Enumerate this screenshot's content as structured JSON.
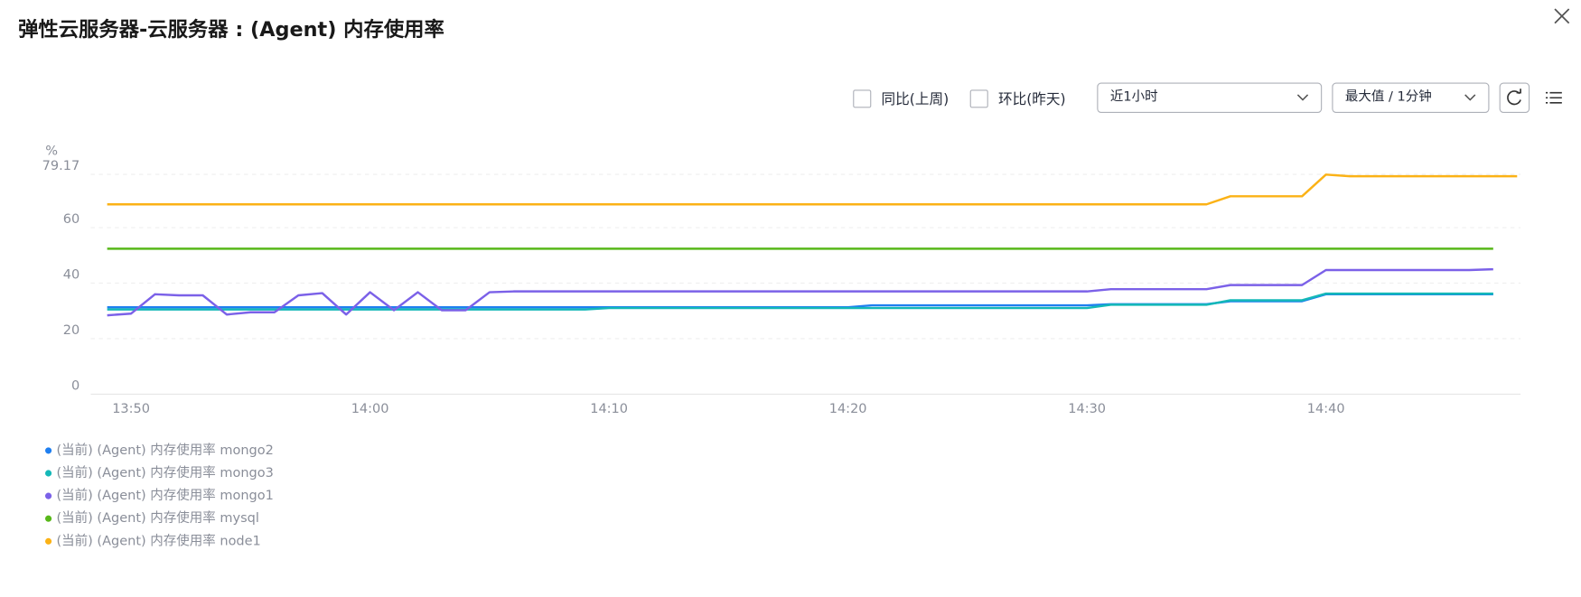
{
  "header": {
    "title": "弹性云服务器-云服务器 : (Agent) 内存使用率"
  },
  "controls": {
    "compare_week": "同比(上周)",
    "compare_day": "环比(昨天)",
    "range": "近1小时",
    "aggregation": "最大值 / 1分钟"
  },
  "chart_data": {
    "type": "line",
    "ylabel": "%",
    "categories": [
      null,
      "13:50",
      null,
      null,
      null,
      null,
      null,
      null,
      null,
      null,
      null,
      "14:00",
      null,
      null,
      null,
      null,
      null,
      null,
      null,
      null,
      null,
      "14:10",
      null,
      null,
      null,
      null,
      null,
      null,
      null,
      null,
      null,
      "14:20",
      null,
      null,
      null,
      null,
      null,
      null,
      null,
      null,
      null,
      "14:30",
      null,
      null,
      null,
      null,
      null,
      null,
      null,
      null,
      null,
      "14:40",
      null,
      null,
      null,
      null,
      null,
      null,
      null,
      null
    ],
    "ylim": [
      0,
      79.17
    ],
    "yticks": [
      0,
      20,
      40,
      60,
      79.17
    ],
    "grid": true,
    "series": [
      {
        "name": "(当前) (Agent) 内存使用率 mongo2",
        "color": "#1f7ff0",
        "values": [
          31.3,
          31.3,
          31.3,
          31.3,
          31.3,
          31.3,
          31.3,
          31.3,
          31.3,
          31.3,
          31.3,
          31.3,
          31.3,
          31.3,
          31.3,
          31.3,
          31.3,
          31.3,
          31.3,
          31.3,
          31.3,
          31.3,
          31.3,
          31.3,
          31.3,
          31.3,
          31.3,
          31.3,
          31.3,
          31.3,
          31.3,
          31.3,
          32,
          32,
          32,
          32,
          32,
          32,
          32,
          32,
          32,
          32,
          32.4,
          32.4,
          32.4,
          32.4,
          32.4,
          33.5,
          33.5,
          33.5,
          33.5,
          36,
          36,
          36,
          36,
          36,
          36,
          36,
          36,
          null
        ]
      },
      {
        "name": "(当前) (Agent) 内存使用率 mongo3",
        "color": "#14b8b8",
        "values": [
          30.5,
          30.5,
          30.5,
          30.5,
          30.5,
          30.5,
          30.5,
          30.5,
          30.5,
          30.5,
          30.5,
          30.5,
          30.5,
          30.5,
          30.5,
          30.5,
          30.5,
          30.5,
          30.5,
          30.5,
          30.5,
          31,
          31,
          31,
          31,
          31,
          31,
          31,
          31,
          31,
          31,
          31,
          31,
          31,
          31,
          31,
          31,
          31,
          31,
          31,
          31,
          31,
          32.2,
          32.2,
          32.2,
          32.2,
          32.2,
          33.8,
          33.8,
          33.8,
          33.8,
          36.2,
          36.2,
          36.2,
          36.2,
          36.2,
          36.2,
          36.2,
          36.2,
          null
        ]
      },
      {
        "name": "(当前) (Agent) 内存使用率 mongo1",
        "color": "#7b61e8",
        "values": [
          28.4,
          29,
          36,
          35.6,
          35.6,
          28.7,
          29.5,
          29.5,
          35.6,
          36.4,
          28.7,
          36.7,
          30.2,
          36.7,
          30.2,
          30.2,
          36.7,
          37,
          37,
          37,
          37,
          37,
          37,
          37,
          37,
          37,
          37,
          37,
          37,
          37,
          37,
          37,
          37,
          37,
          37,
          37,
          37,
          37,
          37,
          37,
          37,
          37,
          37.8,
          37.8,
          37.8,
          37.8,
          37.8,
          39.3,
          39.3,
          39.3,
          39.3,
          44.7,
          44.7,
          44.7,
          44.7,
          44.7,
          44.7,
          44.7,
          45,
          null
        ]
      },
      {
        "name": "(当前) (Agent) 内存使用率 mysql",
        "color": "#58b81a",
        "values": [
          52.4,
          52.4,
          52.4,
          52.4,
          52.4,
          52.4,
          52.4,
          52.4,
          52.4,
          52.4,
          52.4,
          52.4,
          52.4,
          52.4,
          52.4,
          52.4,
          52.4,
          52.4,
          52.4,
          52.4,
          52.4,
          52.4,
          52.4,
          52.4,
          52.4,
          52.4,
          52.4,
          52.4,
          52.4,
          52.4,
          52.4,
          52.4,
          52.4,
          52.4,
          52.4,
          52.4,
          52.4,
          52.4,
          52.4,
          52.4,
          52.4,
          52.4,
          52.4,
          52.4,
          52.4,
          52.4,
          52.4,
          52.4,
          52.4,
          52.4,
          52.4,
          52.4,
          52.4,
          52.4,
          52.4,
          52.4,
          52.4,
          52.4,
          52.4,
          null
        ]
      },
      {
        "name": "(当前) (Agent) 内存使用率 node1",
        "color": "#fbb216",
        "values": [
          68.4,
          68.4,
          68.4,
          68.4,
          68.4,
          68.4,
          68.4,
          68.4,
          68.4,
          68.4,
          68.4,
          68.4,
          68.4,
          68.4,
          68.4,
          68.4,
          68.4,
          68.4,
          68.4,
          68.4,
          68.4,
          68.4,
          68.4,
          68.4,
          68.4,
          68.4,
          68.4,
          68.4,
          68.4,
          68.4,
          68.4,
          68.4,
          68.4,
          68.4,
          68.4,
          68.4,
          68.4,
          68.4,
          68.4,
          68.4,
          68.4,
          68.4,
          68.4,
          68.4,
          68.4,
          68.4,
          68.4,
          71.3,
          71.3,
          71.3,
          71.3,
          79.1,
          78.5,
          78.5,
          78.5,
          78.5,
          78.5,
          78.5,
          78.5,
          78.5
        ]
      }
    ]
  }
}
